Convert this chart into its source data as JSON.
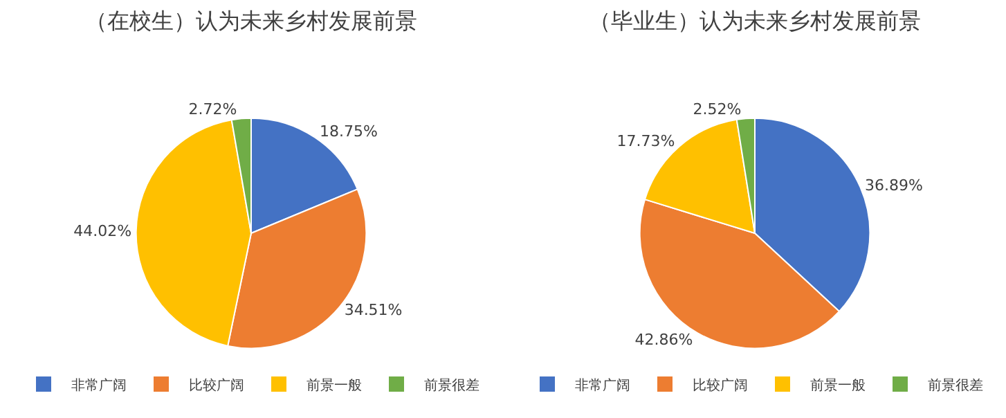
{
  "chart_data": [
    {
      "type": "pie",
      "title": "（在校生）认为未来乡村发展前景",
      "categories": [
        "非常广阔",
        "比较广阔",
        "前景一般",
        "前景很差"
      ],
      "values": [
        18.75,
        34.51,
        44.02,
        2.72
      ],
      "value_labels": [
        "18.75%",
        "34.51%",
        "44.02%",
        "2.72%"
      ],
      "colors": [
        "#4472c4",
        "#ed7d31",
        "#ffc000",
        "#70ad47"
      ],
      "legend": "bottom"
    },
    {
      "type": "pie",
      "title": "（毕业生）认为未来乡村发展前景",
      "categories": [
        "非常广阔",
        "比较广阔",
        "前景一般",
        "前景很差"
      ],
      "values": [
        36.89,
        42.86,
        17.73,
        2.52
      ],
      "value_labels": [
        "36.89%",
        "42.86%",
        "17.73%",
        "2.52%"
      ],
      "colors": [
        "#4472c4",
        "#ed7d31",
        "#ffc000",
        "#70ad47"
      ],
      "legend": "bottom"
    }
  ]
}
